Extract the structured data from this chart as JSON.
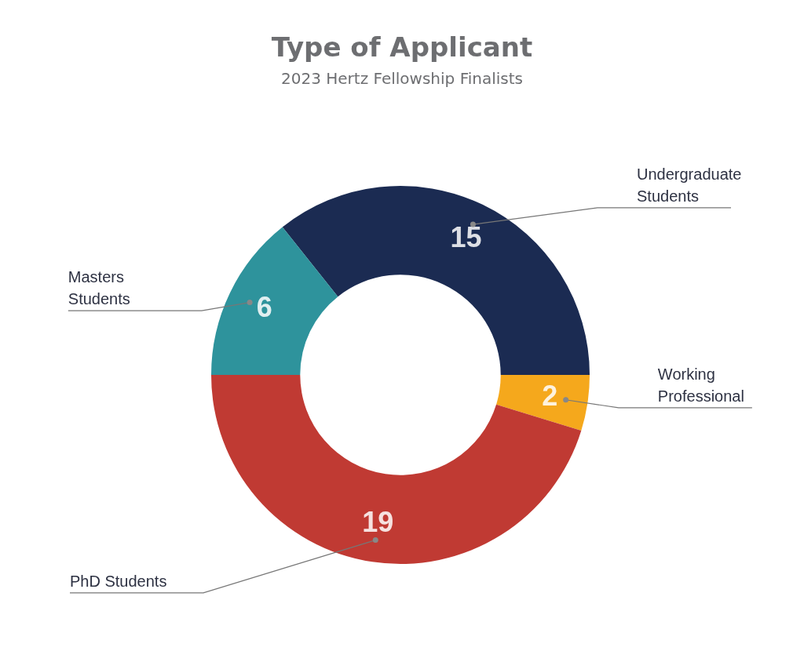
{
  "chart_data": {
    "type": "donut",
    "title": "Type of Applicant",
    "subtitle": "2023 Hertz Fellowship Finalists",
    "categories": [
      "Undergraduate Students",
      "Working Professional",
      "PhD Students",
      "Masters Students"
    ],
    "values": [
      15,
      2,
      19,
      6
    ],
    "colors": [
      "#1b2b52",
      "#f5a81c",
      "#c03a33",
      "#2e939c"
    ],
    "data_labels": true,
    "legend": false
  }
}
